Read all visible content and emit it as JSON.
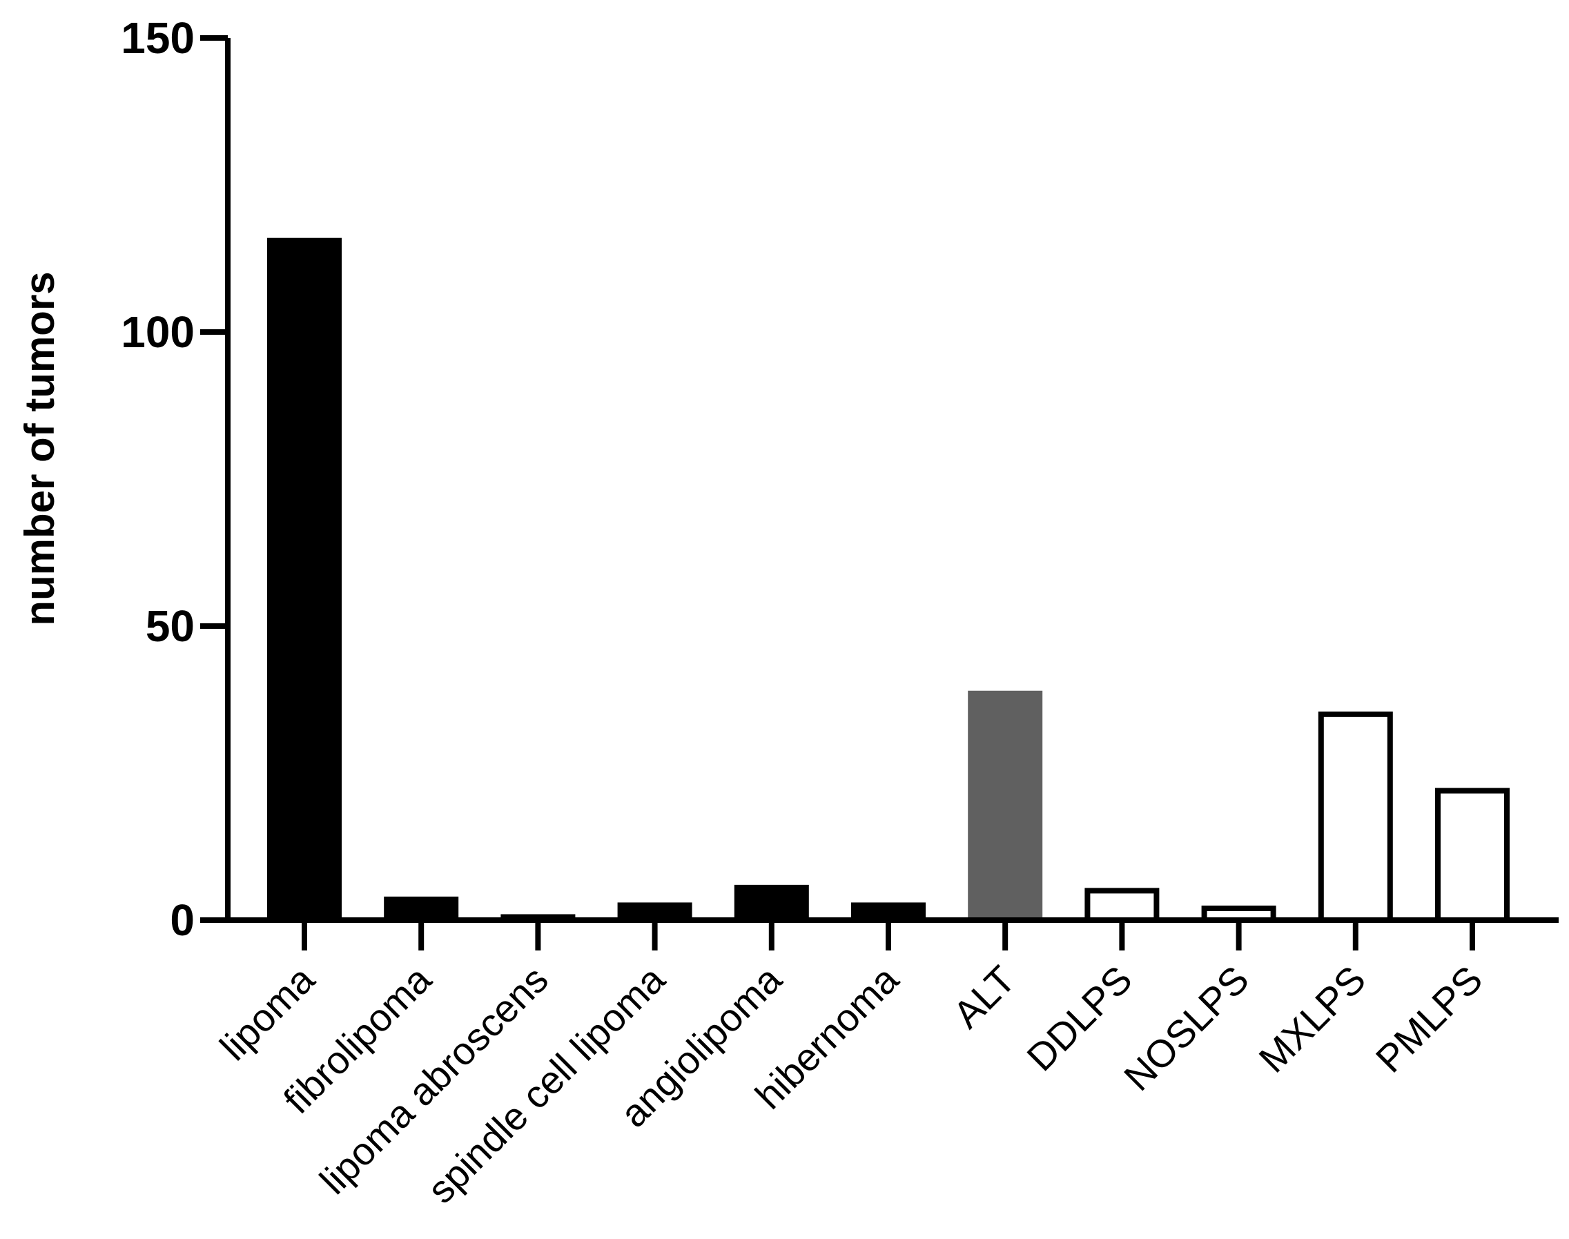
{
  "chart_data": {
    "type": "bar",
    "title": "",
    "xlabel": "",
    "ylabel": "number of tumors",
    "ylim": [
      0,
      150
    ],
    "yticks": [
      0,
      50,
      100,
      150
    ],
    "grid": false,
    "categories": [
      "lipoma",
      "fibrolipoma",
      "lipoma abroscens",
      "spindle cell lipoma",
      "angiolipoma",
      "hibernoma",
      "ALT",
      "DDLPS",
      "NOSLPS",
      "MXLPS",
      "PMLPS"
    ],
    "values": [
      116,
      4,
      1,
      3,
      6,
      3,
      39,
      5,
      2,
      35,
      22
    ],
    "bar_styles": [
      "solid-black",
      "solid-black",
      "solid-black",
      "solid-black",
      "solid-black",
      "solid-black",
      "solid-gray",
      "outline",
      "outline",
      "outline",
      "outline"
    ],
    "colors": {
      "black": "#000000",
      "gray": "#606060",
      "outline_fill": "#ffffff"
    }
  }
}
